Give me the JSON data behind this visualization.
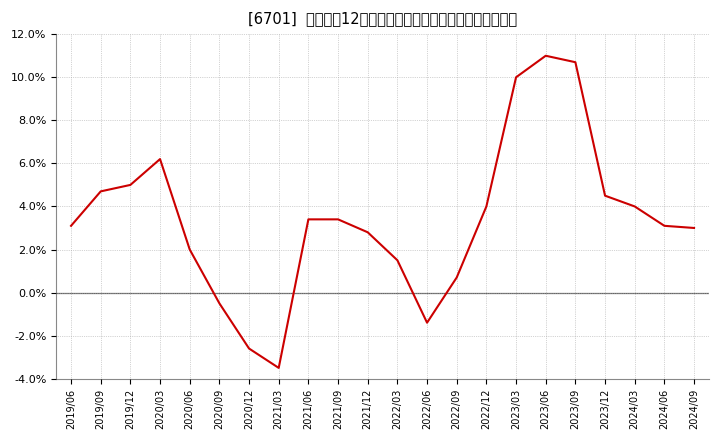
{
  "title": "[6701]  売上高の12か月移動合計の対前年同期増減率の推移",
  "line_color": "#cc0000",
  "background_color": "#ffffff",
  "plot_bg_color": "#ffffff",
  "grid_color": "#aaaaaa",
  "zero_line_color": "#666666",
  "ylim": [
    -0.04,
    0.12
  ],
  "yticks": [
    -0.04,
    -0.02,
    0.0,
    0.02,
    0.04,
    0.06,
    0.08,
    0.1,
    0.12
  ],
  "dates": [
    "2019/06",
    "2019/09",
    "2019/12",
    "2020/03",
    "2020/06",
    "2020/09",
    "2020/12",
    "2021/03",
    "2021/06",
    "2021/09",
    "2021/12",
    "2022/03",
    "2022/06",
    "2022/09",
    "2022/12",
    "2023/03",
    "2023/06",
    "2023/09",
    "2023/12",
    "2024/03",
    "2024/06",
    "2024/09"
  ],
  "values": [
    0.031,
    0.047,
    0.05,
    0.062,
    0.02,
    -0.005,
    -0.026,
    -0.035,
    0.034,
    0.034,
    0.028,
    0.015,
    -0.014,
    0.007,
    0.04,
    0.1,
    0.11,
    0.107,
    0.045,
    0.04,
    0.031,
    0.03
  ]
}
